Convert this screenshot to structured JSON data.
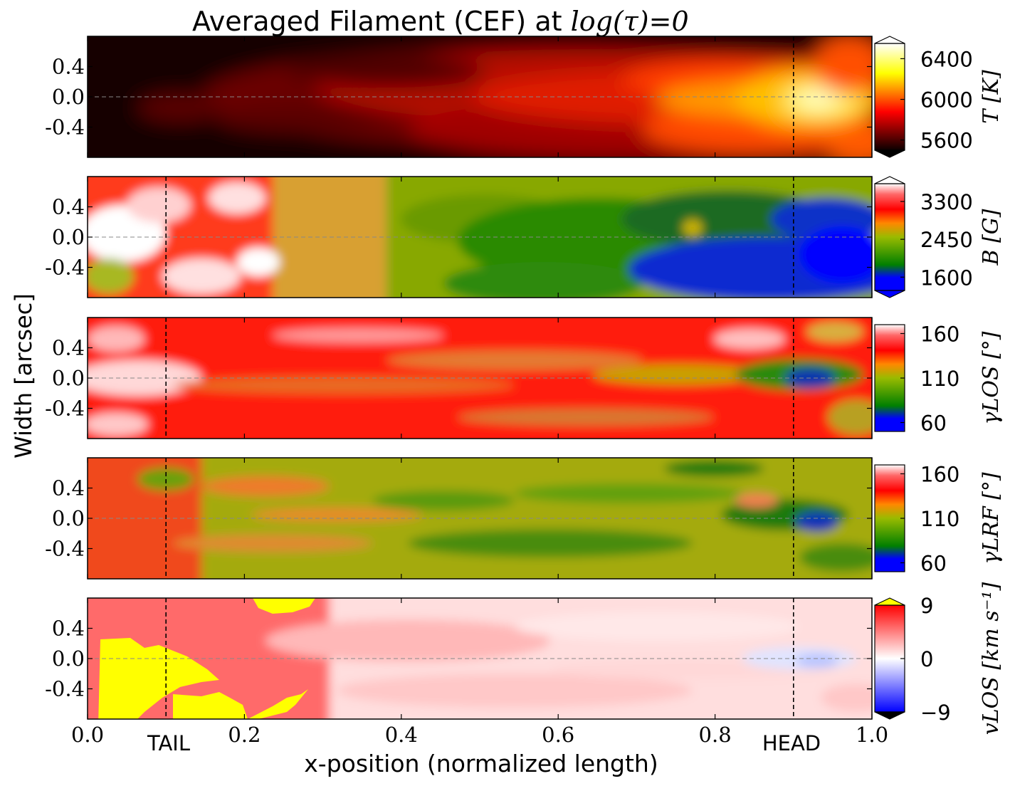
{
  "figure": {
    "title_prefix": "Averaged Filament (CEF) at ",
    "title_math": "log(τ)=0",
    "ylabel": "Width [arcsec]",
    "xlabel": "x-position (normalized length)",
    "marker_tail": "TAIL",
    "marker_head": "HEAD"
  },
  "chart_data": {
    "type": "heatmap",
    "x_range": [
      0.0,
      1.0
    ],
    "y_range": [
      -0.8,
      0.8
    ],
    "x_ticks": [
      0.0,
      0.2,
      0.4,
      0.6,
      0.8,
      1.0
    ],
    "x_tick_labels": [
      "0.0",
      "0.2",
      "0.4",
      "0.6",
      "0.8",
      "1.0"
    ],
    "y_ticks": [
      0.4,
      0.0,
      -0.4
    ],
    "y_tick_labels": [
      "0.4",
      "0.0",
      "-0.4"
    ],
    "tail_x": 0.1,
    "head_x": 0.9,
    "center_line_y": 0.0,
    "panels": [
      {
        "name": "temperature",
        "cbar_label": "T [K]",
        "cmap": "hot",
        "vmin": 5500,
        "vmax": 6550,
        "cbar_ticks": [
          6400,
          6000,
          5600
        ],
        "cbar_tick_labels": [
          "6400",
          "6000",
          "5600"
        ],
        "extend_top_color": "#ffffff",
        "extend_bottom_color": "#000000",
        "show_tail_line": false
      },
      {
        "name": "magnetic-field",
        "cbar_label": "B [G]",
        "cmap": "field",
        "vmin": 1300,
        "vmax": 3700,
        "cbar_ticks": [
          3300,
          2450,
          1600
        ],
        "cbar_tick_labels": [
          "3300",
          "2450",
          "1600"
        ],
        "extend_top_color": "#ffffff",
        "extend_bottom_color": "#0000ff",
        "show_tail_line": true
      },
      {
        "name": "inclination-los",
        "cbar_label": "γLOS [°]",
        "cmap": "field",
        "vmin": 50,
        "vmax": 170,
        "cbar_ticks": [
          160,
          110,
          60
        ],
        "cbar_tick_labels": [
          "160",
          "110",
          "60"
        ],
        "show_tail_line": true
      },
      {
        "name": "inclination-lrf",
        "cbar_label": "γLRF [°]",
        "cmap": "field",
        "vmin": 50,
        "vmax": 170,
        "cbar_ticks": [
          160,
          110,
          60
        ],
        "cbar_tick_labels": [
          "160",
          "110",
          "60"
        ],
        "show_tail_line": true
      },
      {
        "name": "velocity-los",
        "cbar_label": "vLOS [km s⁻¹]",
        "cmap": "velocity",
        "vmin": -9,
        "vmax": 9,
        "cbar_ticks": [
          9,
          0,
          -9
        ],
        "cbar_tick_labels": [
          "9",
          "0",
          "−9"
        ],
        "extend_top_color": "#ffff00",
        "extend_bottom_color": "#000000",
        "show_tail_line": true
      }
    ]
  },
  "colors": {
    "axis": "#000000",
    "guide_line": "#000000",
    "center_line": "#888888"
  }
}
